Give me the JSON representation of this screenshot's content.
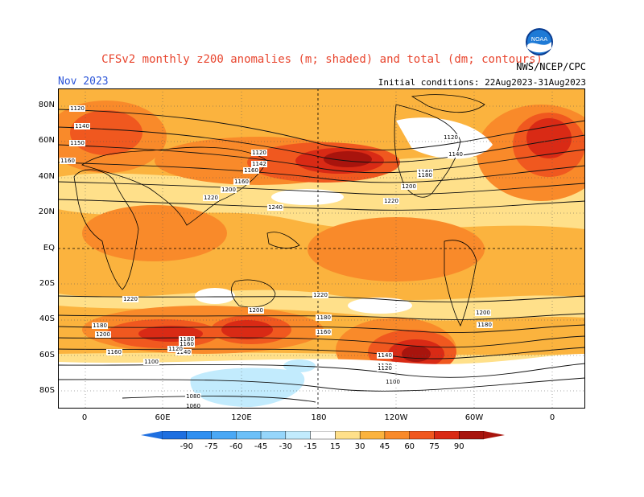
{
  "header": {
    "title": "CFSv2 monthly z200 anomalies (m; shaded) and total (dm; contours)",
    "month": "Nov 2023",
    "initial_conditions": "Initial conditions: 22Aug2023-31Aug2023",
    "agency": "NWS/NCEP/CPC",
    "logo_text": "NOAA"
  },
  "axes": {
    "lat_labels": [
      "80N",
      "60N",
      "40N",
      "20N",
      "EQ",
      "20S",
      "40S",
      "60S",
      "80S"
    ],
    "lon_labels": [
      "0",
      "60E",
      "120E",
      "180",
      "120W",
      "60W",
      "0"
    ]
  },
  "contour_labels": [
    "1120",
    "1140",
    "1150",
    "1160",
    "1120",
    "1142",
    "1160",
    "1160",
    "1200",
    "1220",
    "1240",
    "1120",
    "1140",
    "1160",
    "1180",
    "1200",
    "1220",
    "1220",
    "1200",
    "1180",
    "1160",
    "1180",
    "1200",
    "1180",
    "1160",
    "1140",
    "1120",
    "1120",
    "1160",
    "1140",
    "1120",
    "1100",
    "1100",
    "1080",
    "1060",
    "1220",
    "1200",
    "1180"
  ],
  "colorbar": {
    "ticks": [
      "-90",
      "-75",
      "-60",
      "-45",
      "-30",
      "-15",
      "15",
      "30",
      "45",
      "60",
      "75",
      "90"
    ],
    "colors": [
      "#1e6fe0",
      "#2f8ff0",
      "#4aa8f5",
      "#6cc0f8",
      "#96d6fb",
      "#c2ebfd",
      "#ffffff",
      "#ffe08a",
      "#fbb33e",
      "#f98a2a",
      "#f0581f",
      "#d92a15",
      "#a8140d"
    ]
  }
}
